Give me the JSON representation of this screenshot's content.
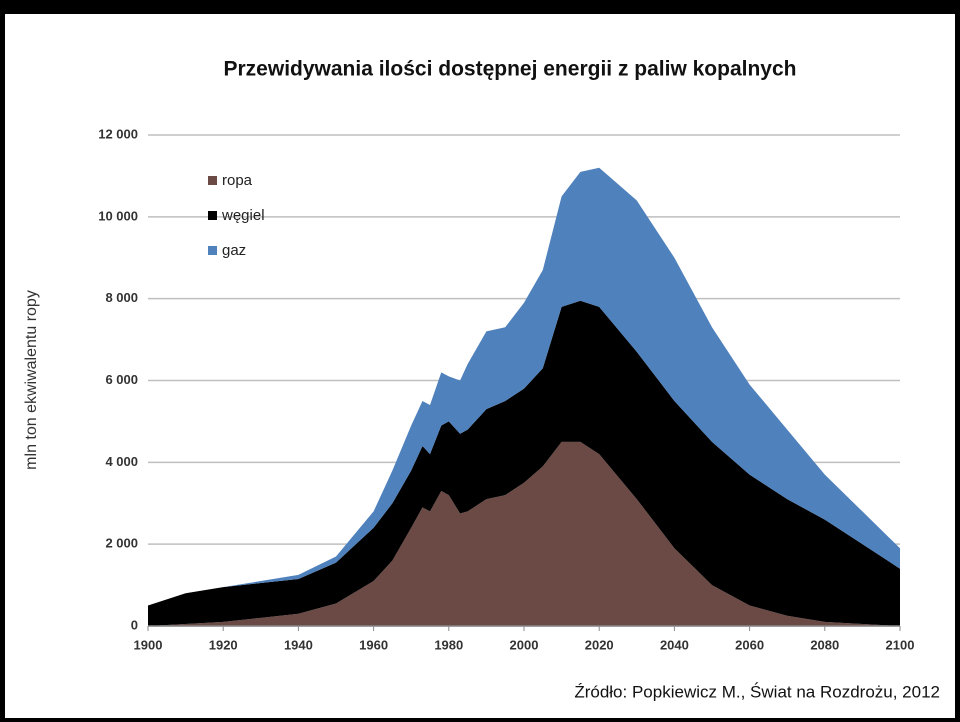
{
  "chart_data": {
    "type": "stacked_area",
    "title": "Przewidywania ilości dostępnej energii z paliw kopalnych",
    "y_label": "mln ton ekwiwalentu ropy",
    "source": "Źródło: Popkiewicz M., Świat na Rozdrożu, 2012",
    "x": [
      1900,
      1910,
      1920,
      1930,
      1940,
      1950,
      1960,
      1965,
      1970,
      1973,
      1975,
      1978,
      1980,
      1983,
      1985,
      1990,
      1995,
      2000,
      2005,
      2010,
      2015,
      2020,
      2030,
      2040,
      2050,
      2060,
      2070,
      2080,
      2090,
      2100
    ],
    "series": [
      {
        "name": "ropa",
        "color": "#6b4a45",
        "values": [
          0,
          50,
          100,
          200,
          300,
          550,
          1100,
          1600,
          2400,
          2900,
          2800,
          3300,
          3200,
          2750,
          2800,
          3100,
          3200,
          3500,
          3900,
          4500,
          4500,
          4200,
          3100,
          1900,
          1000,
          500,
          250,
          100,
          50,
          0
        ]
      },
      {
        "name": "węgiel",
        "color": "#000000",
        "values": [
          500,
          750,
          850,
          850,
          850,
          1000,
          1300,
          1400,
          1400,
          1500,
          1400,
          1600,
          1800,
          1950,
          2000,
          2200,
          2300,
          2300,
          2400,
          3300,
          3450,
          3600,
          3600,
          3600,
          3500,
          3200,
          2850,
          2500,
          1950,
          1400
        ]
      },
      {
        "name": "gaz",
        "color": "#4f81bd",
        "values": [
          0,
          0,
          0,
          50,
          100,
          150,
          400,
          800,
          1100,
          1100,
          1200,
          1300,
          1100,
          1300,
          1600,
          1900,
          1800,
          2100,
          2400,
          2700,
          3150,
          3400,
          3700,
          3500,
          2800,
          2200,
          1700,
          1100,
          800,
          500
        ]
      }
    ],
    "xlim": [
      1900,
      2100
    ],
    "xticks": [
      1900,
      1920,
      1940,
      1960,
      1980,
      2000,
      2020,
      2040,
      2060,
      2080,
      2100
    ],
    "ylim": [
      0,
      12000
    ],
    "yticks": [
      0,
      {
        "value": 2000,
        "label": "2 000"
      },
      {
        "value": 4000,
        "label": "4 000"
      },
      {
        "value": 6000,
        "label": "6 000"
      },
      {
        "value": 8000,
        "label": "8 000"
      },
      {
        "value": 10000,
        "label": "10 000"
      },
      {
        "value": 12000,
        "label": "12 000"
      }
    ],
    "grid": true
  }
}
